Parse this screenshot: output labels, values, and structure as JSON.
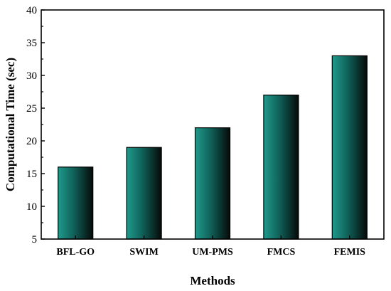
{
  "chart_data": {
    "type": "bar",
    "title": "",
    "categories": [
      "BFL-GO",
      "SWIM",
      "UM-PMS",
      "FMCS",
      "FEMIS"
    ],
    "values": [
      16,
      19,
      22,
      27,
      33
    ],
    "xlabel": "Methods",
    "ylabel": "Computational Time (sec)",
    "ylim": [
      5,
      40
    ],
    "yticks": [
      "5",
      "10",
      "15",
      "20",
      "25",
      "30",
      "35",
      "40"
    ],
    "grid": false,
    "legend": "none",
    "colors": {
      "bar_light": "#1f9a8c",
      "bar_mid": "#0f6159",
      "bar_dark": "#050a09",
      "axis": "#000000"
    }
  }
}
